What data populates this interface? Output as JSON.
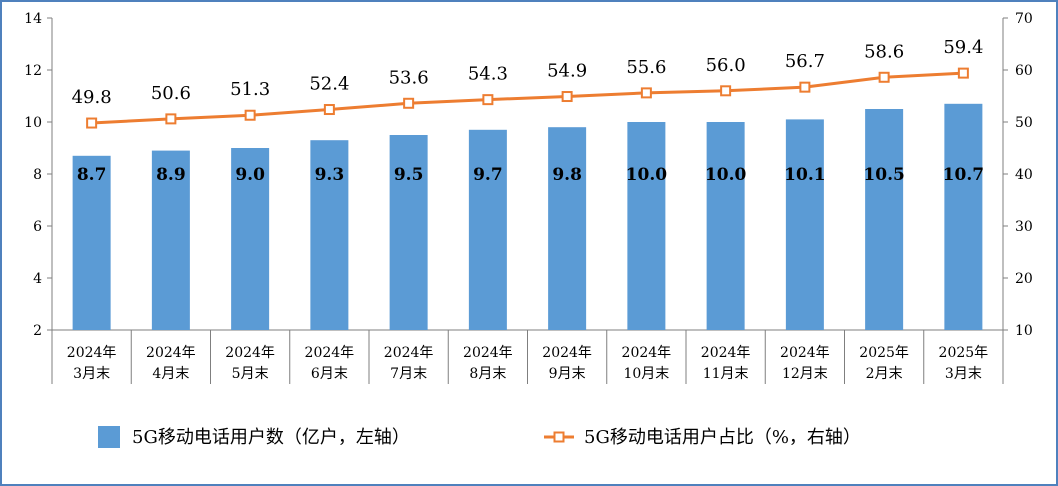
{
  "chart_data": {
    "type": "bar",
    "categories": [
      [
        "2024年",
        "3月末"
      ],
      [
        "2024年",
        "4月末"
      ],
      [
        "2024年",
        "5月末"
      ],
      [
        "2024年",
        "6月末"
      ],
      [
        "2024年",
        "7月末"
      ],
      [
        "2024年",
        "8月末"
      ],
      [
        "2024年",
        "9月末"
      ],
      [
        "2024年",
        "10月末"
      ],
      [
        "2024年",
        "11月末"
      ],
      [
        "2024年",
        "12月末"
      ],
      [
        "2025年",
        "2月末"
      ],
      [
        "2025年",
        "3月末"
      ]
    ],
    "series": [
      {
        "name": "5G移动电话用户数（亿户，左轴）",
        "type": "bar",
        "axis": "left",
        "values": [
          8.7,
          8.9,
          9.0,
          9.3,
          9.5,
          9.7,
          9.8,
          10.0,
          10.0,
          10.1,
          10.5,
          10.7
        ],
        "labels": [
          "8.7",
          "8.9",
          "9.0",
          "9.3",
          "9.5",
          "9.7",
          "9.8",
          "10.0",
          "10.0",
          "10.1",
          "10.5",
          "10.7"
        ],
        "color": "#5b9bd5"
      },
      {
        "name": "5G移动电话用户占比（%，右轴）",
        "type": "line",
        "axis": "right",
        "values": [
          49.8,
          50.6,
          51.3,
          52.4,
          53.6,
          54.3,
          54.9,
          55.6,
          56.0,
          56.7,
          58.6,
          59.4
        ],
        "labels": [
          "49.8",
          "50.6",
          "51.3",
          "52.4",
          "53.6",
          "54.3",
          "54.9",
          "55.6",
          "56.0",
          "56.7",
          "58.6",
          "59.4"
        ],
        "color": "#ed7d31"
      }
    ],
    "y_left": {
      "min": 2,
      "max": 14,
      "ticks": [
        2,
        4,
        6,
        8,
        10,
        12,
        14
      ]
    },
    "y_right": {
      "min": 10,
      "max": 70,
      "ticks": [
        10,
        20,
        30,
        40,
        50,
        60,
        70
      ]
    },
    "legend_position": "bottom",
    "grid": false
  }
}
